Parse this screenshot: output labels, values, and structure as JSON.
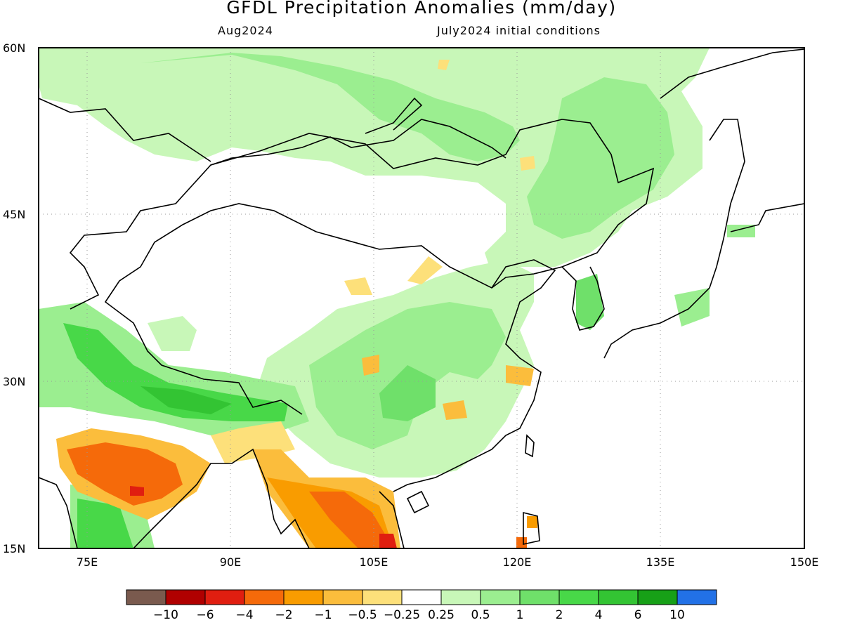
{
  "title": "GFDL Precipitation Anomalies (mm/day)",
  "subtitle_left": "Aug2024",
  "subtitle_right": "July2024 initial conditions",
  "lat_labels": [
    "60N",
    "45N",
    "30N",
    "15N"
  ],
  "lon_labels": [
    "75E",
    "90E",
    "105E",
    "120E",
    "135E",
    "150E"
  ],
  "colorbar": {
    "colors": [
      "#7a5a4e",
      "#b00000",
      "#e01e10",
      "#f56a0a",
      "#f99c00",
      "#fbbd3c",
      "#fde07a",
      "#ffffff",
      "#c8f7b8",
      "#9bee90",
      "#6fe06a",
      "#48d848",
      "#33c433",
      "#17a017",
      "#2271e6"
    ],
    "labels": [
      "−10",
      "−6",
      "−4",
      "−2",
      "−1",
      "−0.5",
      "−0.25",
      "0.25",
      "0.5",
      "1",
      "2",
      "4",
      "6",
      "10"
    ]
  }
}
